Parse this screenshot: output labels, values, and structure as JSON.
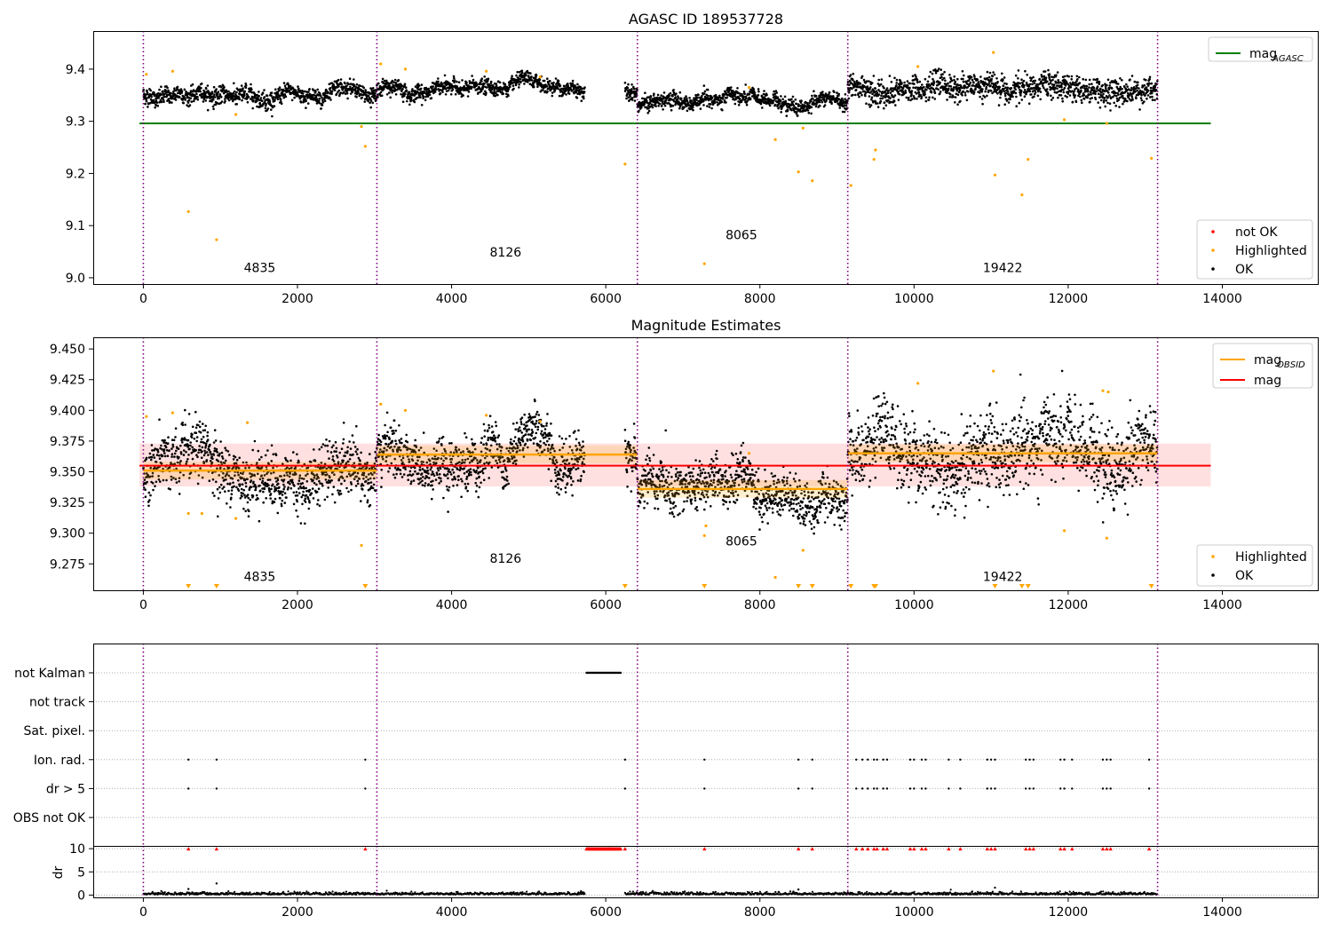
{
  "figure": {
    "title1": "AGASC ID 189537728",
    "title2": "Magnitude Estimates"
  },
  "chart_data": [
    {
      "type": "scatter",
      "title": "AGASC ID 189537728",
      "xlim": [
        -650,
        15250
      ],
      "ylim": [
        8.988,
        9.473
      ],
      "xticks": [
        0,
        2000,
        4000,
        6000,
        8000,
        10000,
        12000,
        14000
      ],
      "yticks": [
        9.0,
        9.1,
        9.2,
        9.3,
        9.4
      ],
      "ytick_format": 1,
      "legend_lines": [
        {
          "label": "mag",
          "sub": "AGASC",
          "color": "#008000"
        }
      ],
      "legend_markers": [
        {
          "label": "not OK",
          "color": "#ff0000"
        },
        {
          "label": "Highlighted",
          "color": "#ffa500"
        },
        {
          "label": "OK",
          "color": "#000000"
        }
      ],
      "reference_line": {
        "y": 9.296,
        "x": [
          -50,
          13850
        ],
        "color": "#008000"
      },
      "obsid_boundaries": [
        0,
        3030,
        6410,
        9140,
        13160
      ],
      "obsid_labels": [
        {
          "text": "4835",
          "x": 1510,
          "y": 9.011
        },
        {
          "text": "8126",
          "x": 4700,
          "y": 9.041
        },
        {
          "text": "8065",
          "x": 7760,
          "y": 9.074
        },
        {
          "text": "19422",
          "x": 11150,
          "y": 9.011
        }
      ],
      "segments": [
        {
          "x": [
            0,
            3030
          ],
          "center": 9.35,
          "spread": 0.008
        },
        {
          "x": [
            3030,
            5730
          ],
          "center": 9.364,
          "spread": 0.007
        },
        {
          "x": [
            6250,
            6410
          ],
          "center": 9.36,
          "spread": 0.008
        },
        {
          "x": [
            6410,
            9140
          ],
          "center": 9.335,
          "spread": 0.007
        },
        {
          "x": [
            9140,
            13160
          ],
          "center": 9.363,
          "spread": 0.012
        }
      ],
      "highlighted_points": [
        [
          585,
          9.127
        ],
        [
          950,
          9.073
        ],
        [
          2830,
          9.29
        ],
        [
          2880,
          9.252
        ],
        [
          6250,
          9.218
        ],
        [
          7280,
          9.027
        ],
        [
          8200,
          9.265
        ],
        [
          8500,
          9.203
        ],
        [
          8560,
          9.287
        ],
        [
          8680,
          9.186
        ],
        [
          9180,
          9.177
        ],
        [
          9480,
          9.227
        ],
        [
          9500,
          9.245
        ],
        [
          11050,
          9.197
        ],
        [
          11400,
          9.159
        ],
        [
          11480,
          9.227
        ],
        [
          11950,
          9.303
        ],
        [
          13080,
          9.229
        ],
        [
          11030,
          9.432
        ],
        [
          12500,
          9.296
        ],
        [
          40,
          9.39
        ],
        [
          380,
          9.396
        ],
        [
          1200,
          9.313
        ],
        [
          3080,
          9.41
        ],
        [
          3400,
          9.4
        ],
        [
          4450,
          9.396
        ],
        [
          5150,
          9.385
        ],
        [
          7860,
          9.365
        ],
        [
          10050,
          9.405
        ]
      ]
    },
    {
      "type": "scatter",
      "title": "Magnitude Estimates",
      "xlim": [
        -650,
        15250
      ],
      "ylim": [
        9.2535,
        9.4595
      ],
      "xticks": [
        0,
        2000,
        4000,
        6000,
        8000,
        10000,
        12000,
        14000
      ],
      "yticks": [
        9.275,
        9.3,
        9.325,
        9.35,
        9.375,
        9.4,
        9.425,
        9.45
      ],
      "ytick_format": 3,
      "legend_lines": [
        {
          "label": "mag",
          "sub": "OBSID",
          "color": "#ffa500"
        },
        {
          "label": "mag",
          "sub": "",
          "color": "#ff0000"
        }
      ],
      "legend_markers": [
        {
          "label": "Highlighted",
          "color": "#ffa500"
        },
        {
          "label": "OK",
          "color": "#000000"
        }
      ],
      "mag_line": {
        "y": 9.355,
        "band": [
          9.338,
          9.373
        ],
        "x": [
          -50,
          13850
        ]
      },
      "obsid_mags": [
        {
          "x": [
            0,
            3030
          ],
          "y": 9.351
        },
        {
          "x": [
            3030,
            6410
          ],
          "y": 9.364
        },
        {
          "x": [
            6410,
            9140
          ],
          "y": 9.336
        },
        {
          "x": [
            9140,
            13160
          ],
          "y": 9.365
        }
      ],
      "obsid_boundaries": [
        0,
        3030,
        6410,
        9140,
        13160
      ],
      "obsid_labels": [
        {
          "text": "4835",
          "x": 1510,
          "y": 9.261
        },
        {
          "text": "8126",
          "x": 4700,
          "y": 9.276
        },
        {
          "text": "8065",
          "x": 7760,
          "y": 9.29
        },
        {
          "text": "19422",
          "x": 11150,
          "y": 9.261
        }
      ],
      "segments": [
        {
          "x": [
            0,
            3030
          ],
          "center": 9.35,
          "spread": 0.011
        },
        {
          "x": [
            3030,
            5730
          ],
          "center": 9.363,
          "spread": 0.01
        },
        {
          "x": [
            6250,
            6410
          ],
          "center": 9.36,
          "spread": 0.01
        },
        {
          "x": [
            6410,
            9140
          ],
          "center": 9.334,
          "spread": 0.009
        },
        {
          "x": [
            9140,
            13160
          ],
          "center": 9.362,
          "spread": 0.016
        }
      ],
      "offscale_markers": [
        585,
        950,
        2880,
        6250,
        7280,
        8500,
        8680,
        9180,
        9480,
        9500,
        11050,
        11400,
        11480,
        13080
      ],
      "highlighted_points": [
        [
          585,
          9.316
        ],
        [
          760,
          9.316
        ],
        [
          1200,
          9.312
        ],
        [
          2830,
          9.29
        ],
        [
          8560,
          9.286
        ],
        [
          8200,
          9.264
        ],
        [
          11950,
          9.302
        ],
        [
          12500,
          9.296
        ],
        [
          7280,
          9.298
        ],
        [
          7300,
          9.306
        ],
        [
          11030,
          9.432
        ],
        [
          10050,
          9.422
        ],
        [
          40,
          9.395
        ],
        [
          380,
          9.398
        ],
        [
          1350,
          9.39
        ],
        [
          3080,
          9.405
        ],
        [
          3400,
          9.4
        ],
        [
          4450,
          9.396
        ],
        [
          5150,
          9.391
        ],
        [
          7860,
          9.365
        ],
        [
          12450,
          9.416
        ],
        [
          12520,
          9.415
        ]
      ]
    },
    {
      "type": "scatter",
      "title": "",
      "xlim": [
        -650,
        15250
      ],
      "xticks": [
        0,
        2000,
        4000,
        6000,
        8000,
        10000,
        12000,
        14000
      ],
      "flag_categories": [
        "not Kalman",
        "not track",
        "Sat. pixel.",
        "Ion. rad.",
        "dr > 5",
        "OBS not OK"
      ],
      "dr_ylabel": "dr",
      "dr_yticks": [
        0,
        5,
        10
      ],
      "dr_ylim": [
        -0.5,
        10.6
      ],
      "obsid_boundaries": [
        0,
        3030,
        6410,
        9140,
        13160
      ],
      "not_kalman_range": [
        5750,
        6200
      ],
      "flag_times": [
        585,
        950,
        2880,
        6250,
        7280,
        8500,
        8680,
        9250,
        9330,
        9400,
        9480,
        9520,
        9600,
        9650,
        9950,
        10000,
        10100,
        10150,
        10450,
        10600,
        10950,
        11000,
        11050,
        11450,
        11500,
        11550,
        11900,
        11950,
        12050,
        12450,
        12500,
        12550,
        13050
      ]
    }
  ]
}
